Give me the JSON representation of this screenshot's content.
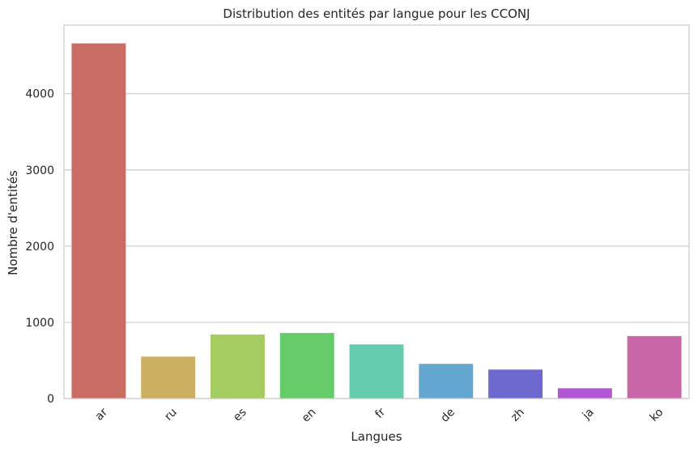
{
  "chart_data": {
    "type": "bar",
    "title": "Distribution des entités par langue pour les CCONJ",
    "xlabel": "Langues",
    "ylabel": "Nombre d'entités",
    "categories": [
      "ar",
      "ru",
      "es",
      "en",
      "fr",
      "de",
      "zh",
      "ja",
      "ko"
    ],
    "values": [
      4660,
      550,
      840,
      860,
      710,
      455,
      380,
      135,
      820
    ],
    "colors": [
      "#c96c63",
      "#ccaf60",
      "#a4cc61",
      "#66cc6a",
      "#66ccb0",
      "#63a6cf",
      "#6e69cf",
      "#b058d4",
      "#c866a8"
    ],
    "ylim": [
      0,
      4900
    ],
    "yticks": [
      0,
      1000,
      2000,
      3000,
      4000
    ],
    "grid": "horizontal",
    "xtick_rotation": 45
  }
}
